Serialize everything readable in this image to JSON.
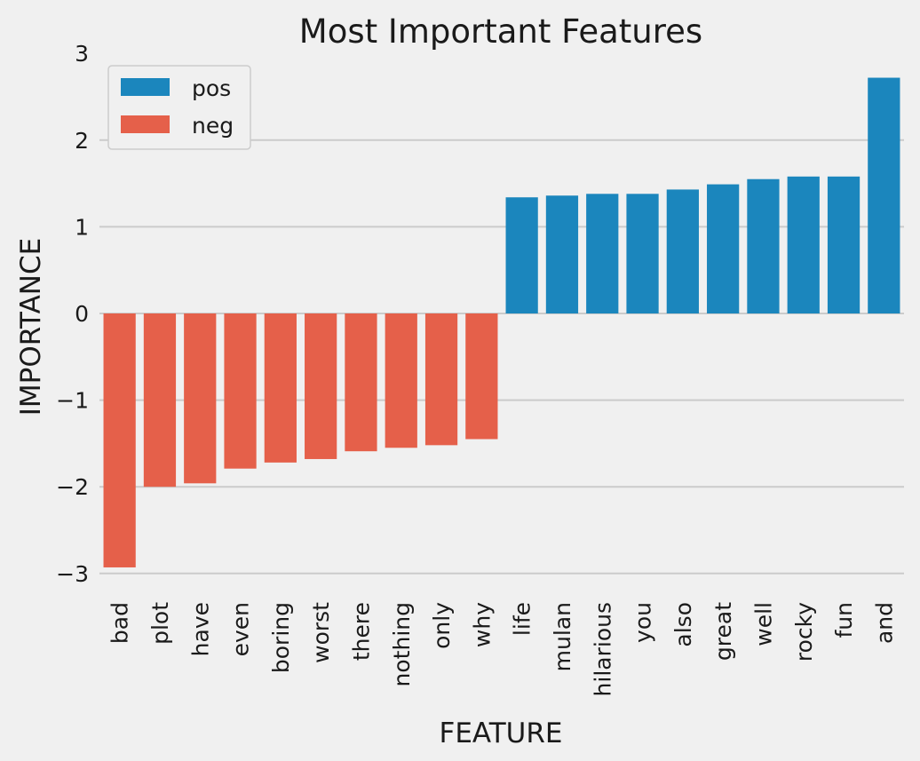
{
  "chart_data": {
    "type": "bar",
    "title": "Most Important Features",
    "xlabel": "FEATURE",
    "ylabel": "IMPORTANCE",
    "ylim": [
      -3.2,
      3.0
    ],
    "yticks": [
      3,
      2,
      1,
      0,
      -1,
      -2,
      -3
    ],
    "ytick_labels": [
      "3",
      "2",
      "1",
      "0",
      "−1",
      "−2",
      "−3"
    ],
    "grid": true,
    "legend_placement": "upper-left",
    "categories": [
      "bad",
      "plot",
      "have",
      "even",
      "boring",
      "worst",
      "there",
      "nothing",
      "only",
      "why",
      "life",
      "mulan",
      "hilarious",
      "you",
      "also",
      "great",
      "well",
      "rocky",
      "fun",
      "and"
    ],
    "values": [
      -2.93,
      -2.0,
      -1.96,
      -1.79,
      -1.72,
      -1.68,
      -1.59,
      -1.55,
      -1.52,
      -1.45,
      1.34,
      1.36,
      1.38,
      1.38,
      1.43,
      1.49,
      1.55,
      1.58,
      1.58,
      2.72
    ],
    "series": [
      {
        "name": "pos",
        "color": "#1b86bd"
      },
      {
        "name": "neg",
        "color": "#e5604a"
      }
    ],
    "colors": {
      "background": "#f0f0f0",
      "grid": "#cbcbcb"
    }
  }
}
